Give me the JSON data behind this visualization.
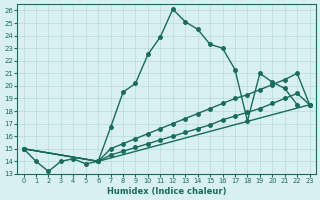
{
  "xlabel": "Humidex (Indice chaleur)",
  "xlim": [
    -0.5,
    23.5
  ],
  "ylim": [
    13,
    26.5
  ],
  "xticks": [
    0,
    1,
    2,
    3,
    4,
    5,
    6,
    7,
    8,
    9,
    10,
    11,
    12,
    13,
    14,
    15,
    16,
    17,
    18,
    19,
    20,
    21,
    22,
    23
  ],
  "yticks": [
    13,
    14,
    15,
    16,
    17,
    18,
    19,
    20,
    21,
    22,
    23,
    24,
    25,
    26
  ],
  "line_color": "#1a6b5a",
  "bg_color": "#d8f0f0",
  "grid_color": "#b8dada",
  "main_x": [
    0,
    1,
    2,
    3,
    4,
    5,
    6,
    7,
    8,
    9,
    10,
    11,
    12,
    13,
    14,
    15,
    16,
    17,
    18,
    19,
    20,
    21,
    22
  ],
  "main_y": [
    15.0,
    14.0,
    13.2,
    14.0,
    14.2,
    13.8,
    14.0,
    16.7,
    19.5,
    20.2,
    22.5,
    23.9,
    26.1,
    25.1,
    24.5,
    23.3,
    23.0,
    21.3,
    17.2,
    21.0,
    20.3,
    19.8,
    18.5
  ],
  "line2_x": [
    0,
    6,
    7,
    8,
    9,
    10,
    11,
    12,
    13,
    14,
    15,
    16,
    17,
    18,
    19,
    20,
    21,
    22,
    23
  ],
  "line2_y": [
    15.0,
    14.0,
    15.0,
    15.4,
    15.8,
    16.2,
    16.6,
    17.0,
    17.4,
    17.8,
    18.2,
    18.6,
    19.0,
    19.3,
    19.7,
    20.1,
    20.5,
    21.0,
    18.5
  ],
  "line3_x": [
    0,
    6,
    7,
    8,
    9,
    10,
    11,
    12,
    13,
    14,
    15,
    16,
    17,
    18,
    19,
    20,
    21,
    22,
    23
  ],
  "line3_y": [
    15.0,
    14.0,
    14.5,
    14.8,
    15.1,
    15.4,
    15.7,
    16.0,
    16.3,
    16.6,
    16.9,
    17.3,
    17.6,
    17.9,
    18.2,
    18.6,
    19.0,
    19.4,
    18.5
  ],
  "line4_x": [
    0,
    6,
    23
  ],
  "line4_y": [
    15.0,
    14.0,
    18.5
  ],
  "marker_size": 2.5,
  "line_width": 1.0
}
